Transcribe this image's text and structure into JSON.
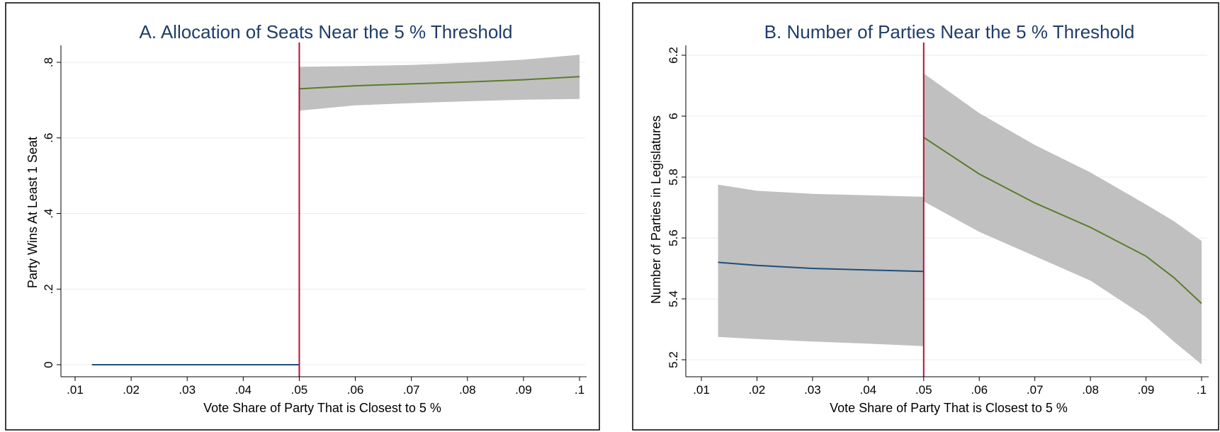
{
  "chart_data": [
    {
      "type": "line",
      "title": "A. Allocation of Seats Near the 5 % Threshold",
      "xlabel": "Vote Share of Party That is Closest to 5 %",
      "ylabel": "Party Wins At Least 1 Seat",
      "xlim": [
        0.01,
        0.1
      ],
      "ylim": [
        0,
        0.8
      ],
      "xticks": [
        0.01,
        0.02,
        0.03,
        0.04,
        0.05,
        0.06,
        0.07,
        0.08,
        0.09,
        0.1
      ],
      "xtick_labels": [
        ".01",
        ".02",
        ".03",
        ".04",
        ".05",
        ".06",
        ".07",
        ".08",
        ".09",
        ".1"
      ],
      "yticks": [
        0,
        0.2,
        0.4,
        0.6,
        0.8
      ],
      "ytick_labels": [
        "0",
        ".2",
        ".4",
        ".6",
        ".8"
      ],
      "threshold": 0.05,
      "grid": true,
      "colors": {
        "left": "#1f4e79",
        "right": "#5a7d2a",
        "band": "#c0c0c0",
        "threshold": "#b0123a",
        "title": "#1f3d6b"
      },
      "series": [
        {
          "side": "left",
          "x": [
            0.013,
            0.05
          ],
          "y": [
            0.0,
            0.0
          ],
          "lower": [
            0.0,
            0.0
          ],
          "upper": [
            0.0,
            0.0
          ]
        },
        {
          "side": "right",
          "x": [
            0.05,
            0.06,
            0.07,
            0.08,
            0.09,
            0.1
          ],
          "y": [
            0.73,
            0.738,
            0.743,
            0.748,
            0.754,
            0.762
          ],
          "lower": [
            0.672,
            0.686,
            0.692,
            0.697,
            0.701,
            0.703
          ],
          "upper": [
            0.788,
            0.79,
            0.793,
            0.799,
            0.807,
            0.82
          ]
        }
      ]
    },
    {
      "type": "line",
      "title": "B. Number of Parties Near the 5 % Threshold",
      "xlabel": "Vote Share of Party That is Closest to 5 %",
      "ylabel": "Number  of  Parties  in Legislatures",
      "xlim": [
        0.01,
        0.1
      ],
      "ylim": [
        5.2,
        6.2
      ],
      "xticks": [
        0.01,
        0.02,
        0.03,
        0.04,
        0.05,
        0.06,
        0.07,
        0.08,
        0.09,
        0.1
      ],
      "xtick_labels": [
        ".01",
        ".02",
        ".03",
        ".04",
        ".05",
        ".06",
        ".07",
        ".08",
        ".09",
        ".1"
      ],
      "yticks": [
        5.2,
        5.4,
        5.6,
        5.8,
        6.0,
        6.2
      ],
      "ytick_labels": [
        "5.2",
        "5.4",
        "5.6",
        "5.8",
        "6",
        "6.2"
      ],
      "threshold": 0.05,
      "grid": true,
      "colors": {
        "left": "#1f4e79",
        "right": "#5a7d2a",
        "band": "#c0c0c0",
        "threshold": "#b0123a",
        "title": "#1f3d6b"
      },
      "series": [
        {
          "side": "left",
          "x": [
            0.013,
            0.02,
            0.03,
            0.04,
            0.05
          ],
          "y": [
            5.52,
            5.51,
            5.5,
            5.495,
            5.49
          ],
          "lower": [
            5.275,
            5.268,
            5.26,
            5.253,
            5.245
          ],
          "upper": [
            5.775,
            5.755,
            5.745,
            5.74,
            5.735
          ]
        },
        {
          "side": "right",
          "x": [
            0.05,
            0.06,
            0.07,
            0.08,
            0.09,
            0.095,
            0.1
          ],
          "y": [
            5.93,
            5.81,
            5.715,
            5.635,
            5.54,
            5.47,
            5.385
          ],
          "lower": [
            5.72,
            5.62,
            5.54,
            5.46,
            5.34,
            5.26,
            5.185
          ],
          "upper": [
            6.14,
            6.01,
            5.905,
            5.815,
            5.71,
            5.655,
            5.59
          ]
        }
      ]
    }
  ]
}
